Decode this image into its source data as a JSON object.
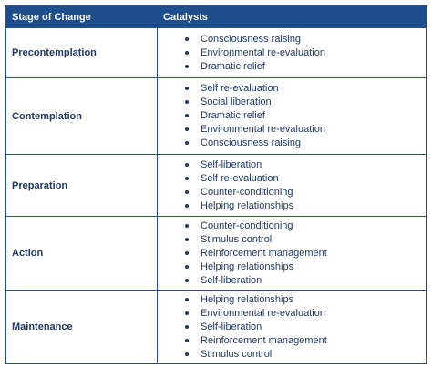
{
  "table": {
    "headers": [
      "Stage of Change",
      "Catalysts"
    ],
    "rows": [
      {
        "stage": "Precontemplation",
        "catalysts": [
          "Consciousness raising",
          "Environmental re-evaluation",
          "Dramatic relief"
        ]
      },
      {
        "stage": "Contemplation",
        "catalysts": [
          "Self re-evaluation",
          "Social liberation",
          "Dramatic relief",
          "Environmental re-evaluation",
          "Consciousness raising"
        ]
      },
      {
        "stage": "Preparation",
        "catalysts": [
          "Self-liberation",
          "Self re-evaluation",
          "Counter-conditioning",
          "Helping relationships"
        ]
      },
      {
        "stage": "Action",
        "catalysts": [
          "Counter-conditioning",
          "Stimulus control",
          "Reinforcement management",
          "Helping relationships",
          "Self-liberation"
        ]
      },
      {
        "stage": "Maintenance",
        "catalysts": [
          "Helping relationships",
          "Environmental re-evaluation",
          "Self-liberation",
          "Reinforcement management",
          "Stimulus control"
        ]
      }
    ]
  },
  "colors": {
    "header_bg": "#1f4e8c",
    "header_text": "#ffffff",
    "body_text": "#1f3864",
    "border": "#1f4e8c"
  },
  "icons": {
    "bullet": "bullet-icon"
  }
}
